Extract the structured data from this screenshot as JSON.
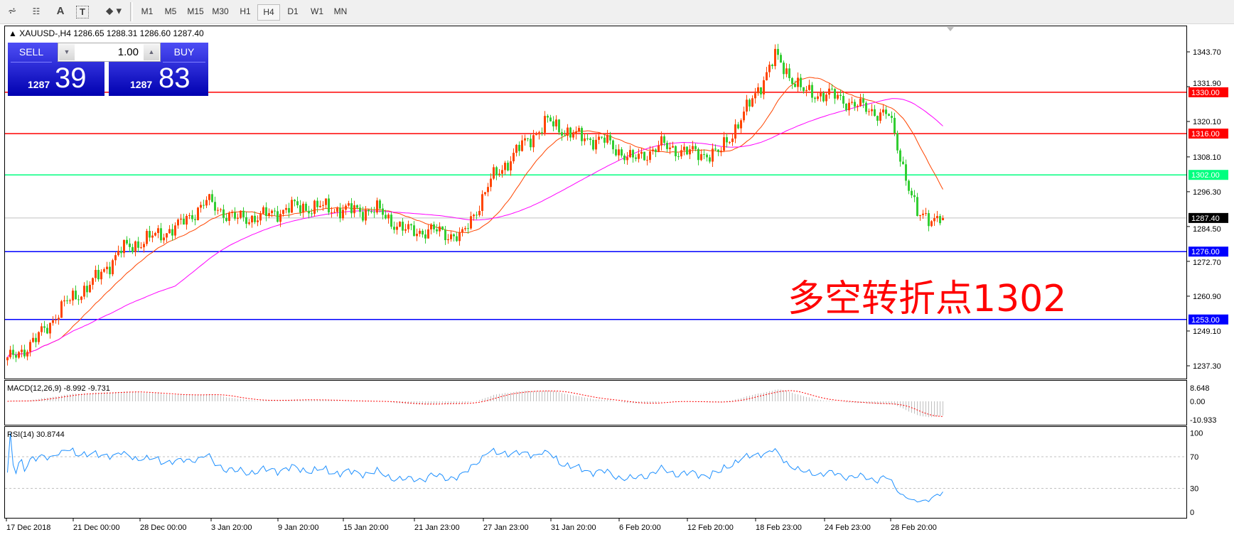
{
  "toolbar": {
    "icons": [
      "elliott-wave-icon",
      "fibonacci-icon",
      "text-icon",
      "text-label-icon",
      "arrows-dropdown-icon"
    ],
    "text_icon_glyph": "A",
    "timeframes": [
      "M1",
      "M5",
      "M15",
      "M30",
      "H1",
      "H4",
      "D1",
      "W1",
      "MN"
    ],
    "active_timeframe": "H4"
  },
  "chart": {
    "title": "▲ XAUUSD-,H4  1286.65 1288.31 1286.60 1287.40",
    "symbol": "XAUUSD-",
    "ohlc": {
      "open": 1286.65,
      "high": 1288.31,
      "low": 1286.6,
      "close": 1287.4
    },
    "annotation": "多空转折点1302",
    "price_ticks": [
      "1343.70",
      "1331.90",
      "1320.10",
      "1308.10",
      "1296.30",
      "1284.50",
      "1272.70",
      "1260.90",
      "1249.10",
      "1237.30"
    ],
    "levels": [
      {
        "label": "1330.00",
        "value": 1330.0,
        "color": "#ff0000"
      },
      {
        "label": "1316.00",
        "value": 1316.0,
        "color": "#ff0000"
      },
      {
        "label": "1302.00",
        "value": 1302.0,
        "color": "#00ff7f"
      },
      {
        "label": "1276.00",
        "value": 1276.0,
        "color": "#0000ff"
      },
      {
        "label": "1253.00",
        "value": 1253.0,
        "color": "#0000ff"
      }
    ],
    "bid_label": "1287.40",
    "bid_value": 1287.4,
    "time_labels": [
      "17 Dec 2018",
      "21 Dec 00:00",
      "28 Dec 00:00",
      "3 Jan 20:00",
      "9 Jan 20:00",
      "15 Jan 20:00",
      "21 Jan 23:00",
      "27 Jan 23:00",
      "31 Jan 20:00",
      "6 Feb 20:00",
      "12 Feb 20:00",
      "18 Feb 23:00",
      "24 Feb 23:00",
      "28 Feb 20:00"
    ],
    "price_path": [
      1239,
      1246,
      1258,
      1265.5,
      1276.5,
      1280.5,
      1284.5,
      1293,
      1287,
      1288,
      1291,
      1291,
      1290,
      1290,
      1283,
      1283,
      1281,
      1300,
      1311,
      1320,
      1315,
      1313.5,
      1307,
      1312,
      1309.5,
      1309,
      1324,
      1342,
      1330,
      1329,
      1325,
      1322,
      1288,
      1287.4
    ],
    "colors": {
      "bull": "#ff4500",
      "bear": "#32cd32",
      "ma_fast": "#ff4500",
      "ma_slow": "#ff00ff"
    }
  },
  "trade_panel": {
    "sell_label": "SELL",
    "buy_label": "BUY",
    "volume": "1.00",
    "sell_price_prefix": "1287",
    "sell_price_big": "39",
    "buy_price_prefix": "1287",
    "buy_price_big": "83"
  },
  "macd": {
    "label": "MACD(12,26,9) -8.992 -9.731",
    "ticks": [
      "8.648",
      "0.00",
      "-10.933"
    ]
  },
  "rsi": {
    "label": "RSI(14) 30.8744",
    "ticks": [
      "100",
      "70",
      "30",
      "0"
    ]
  }
}
